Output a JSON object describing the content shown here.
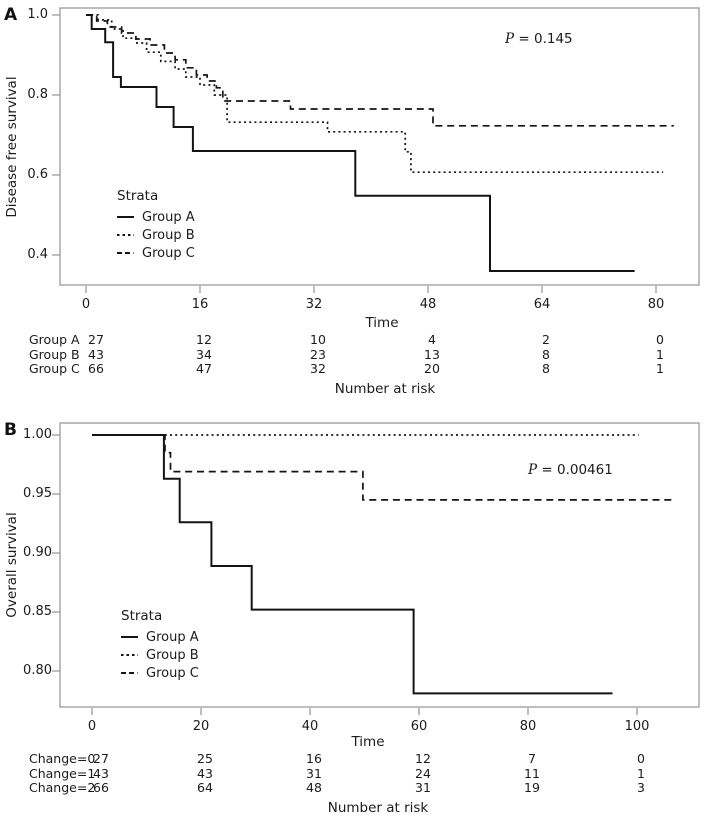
{
  "colors": {
    "line": "#141414",
    "frame": "#9a9a9a",
    "text": "#1b1b1b",
    "background": "#ffffff"
  },
  "chart_data": [
    {
      "type": "line",
      "subtype": "kaplan-meier-step",
      "panel_label": "A",
      "ylabel": "Disease free survival",
      "xlabel": "Time",
      "p_italic": "P",
      "p_rest": " = 0.145",
      "legend_title": "Strata",
      "legend_position": "inside-left-bottom",
      "grid": false,
      "x_ticks": [
        0,
        16,
        32,
        48,
        64,
        80
      ],
      "y_ticks": [
        1.0,
        0.8,
        0.6,
        0.4
      ],
      "y_tick_labels": [
        "1.0",
        "0.8",
        "0.6",
        "0.4"
      ],
      "xlim": [
        -4,
        86
      ],
      "ylim": [
        0.325,
        1.018
      ],
      "series": [
        {
          "name": "Group A",
          "style": "solid",
          "points": [
            [
              0,
              1.0
            ],
            [
              0.8,
              0.965
            ],
            [
              2.7,
              0.932
            ],
            [
              3.8,
              0.845
            ],
            [
              4.9,
              0.82
            ],
            [
              9.9,
              0.77
            ],
            [
              12.3,
              0.72
            ],
            [
              15,
              0.66
            ],
            [
              37.8,
              0.548
            ],
            [
              56.7,
              0.36
            ]
          ],
          "end_time": 77
        },
        {
          "name": "Group B",
          "style": "dotted",
          "points": [
            [
              0,
              1.0
            ],
            [
              1.7,
              0.988
            ],
            [
              3.6,
              0.965
            ],
            [
              5.2,
              0.942
            ],
            [
              7,
              0.93
            ],
            [
              8.5,
              0.907
            ],
            [
              10.5,
              0.884
            ],
            [
              12.5,
              0.865
            ],
            [
              14,
              0.845
            ],
            [
              16,
              0.825
            ],
            [
              18,
              0.8
            ],
            [
              19.8,
              0.732
            ],
            [
              33.9,
              0.708
            ],
            [
              44.8,
              0.658
            ],
            [
              45.6,
              0.607
            ]
          ],
          "end_time": 81
        },
        {
          "name": "Group C",
          "style": "dashed",
          "points": [
            [
              0,
              1.0
            ],
            [
              1.5,
              0.985
            ],
            [
              3,
              0.97
            ],
            [
              5,
              0.955
            ],
            [
              7,
              0.94
            ],
            [
              9,
              0.925
            ],
            [
              11,
              0.905
            ],
            [
              12.5,
              0.888
            ],
            [
              14,
              0.868
            ],
            [
              15.5,
              0.85
            ],
            [
              17,
              0.835
            ],
            [
              18.3,
              0.818
            ],
            [
              19.2,
              0.785
            ],
            [
              28.7,
              0.765
            ],
            [
              48.7,
              0.723
            ]
          ],
          "end_time": 82.5
        }
      ],
      "risk_caption": "Number at risk",
      "risk_table": {
        "time_points": [
          0,
          16,
          32,
          48,
          64,
          80
        ],
        "rows": [
          {
            "label": "Group A",
            "values": [
              "27",
              "12",
              "10",
              "4",
              "2",
              "0"
            ]
          },
          {
            "label": "Group B",
            "values": [
              "43",
              "34",
              "23",
              "13",
              "8",
              "1"
            ]
          },
          {
            "label": "Group C",
            "values": [
              "66",
              "47",
              "32",
              "20",
              "8",
              "1"
            ]
          }
        ]
      }
    },
    {
      "type": "line",
      "subtype": "kaplan-meier-step",
      "panel_label": "B",
      "ylabel": "Overall survival",
      "xlabel": "Time",
      "p_italic": "P",
      "p_rest": " = 0.00461",
      "legend_title": "Strata",
      "legend_position": "inside-left-bottom",
      "grid": false,
      "x_ticks": [
        0,
        20,
        40,
        60,
        80,
        100
      ],
      "y_ticks": [
        1.0,
        0.95,
        0.9,
        0.85,
        0.8
      ],
      "y_tick_labels": [
        "1.00",
        "0.95",
        "0.90",
        "0.85",
        "0.80"
      ],
      "xlim": [
        -6,
        115
      ],
      "ylim": [
        0.772,
        1.01
      ],
      "series": [
        {
          "name": "Group A",
          "style": "solid",
          "points": [
            [
              0,
              1.0
            ],
            [
              13.2,
              0.963
            ],
            [
              16.1,
              0.926
            ],
            [
              21.9,
              0.889
            ],
            [
              29.3,
              0.852
            ],
            [
              59,
              0.781
            ]
          ],
          "end_time": 95.5
        },
        {
          "name": "Group B",
          "style": "dotted",
          "points": [
            [
              0,
              1.0
            ]
          ],
          "end_time": 100.3
        },
        {
          "name": "Group C",
          "style": "dashed",
          "points": [
            [
              0,
              1.0
            ],
            [
              13.4,
              0.985
            ],
            [
              14.4,
              0.969
            ],
            [
              49.7,
              0.945
            ]
          ],
          "end_time": 107
        }
      ],
      "risk_caption": "Number at risk",
      "risk_table": {
        "time_points": [
          0,
          20,
          40,
          60,
          80,
          100
        ],
        "rows": [
          {
            "label": "Change=0",
            "values": [
              "27",
              "25",
              "16",
              "12",
              "7",
              "0"
            ]
          },
          {
            "label": "Change=1",
            "values": [
              "43",
              "43",
              "31",
              "24",
              "11",
              "1"
            ]
          },
          {
            "label": "Change=2",
            "values": [
              "66",
              "64",
              "48",
              "31",
              "19",
              "3"
            ]
          }
        ]
      }
    }
  ]
}
